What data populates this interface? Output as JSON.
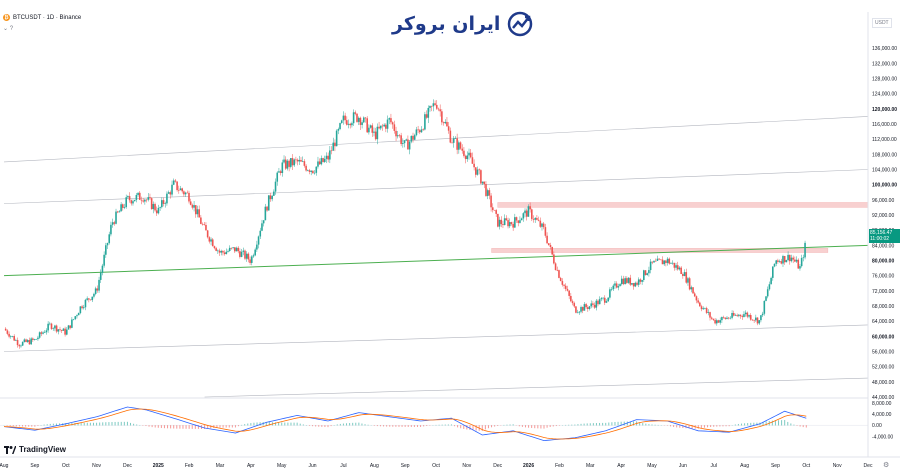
{
  "header": {
    "symbol": "BTCUSDT · 1D · Binance",
    "coin_glyph": "₿",
    "indicator_toggle": "⌄  ?"
  },
  "watermark": {
    "brand_text": "ایران بروکر",
    "icon_name": "chart-trend-icon"
  },
  "footer": {
    "brand": "TradingView",
    "icon_name": "tradingview-logo"
  },
  "axis": {
    "quote_currency": "USDT"
  },
  "price_marker": {
    "price": "85,156.47",
    "countdown": "11:00:02",
    "color": "#089981"
  },
  "settings": {
    "icon_name": "gear-icon",
    "glyph": "⚙"
  },
  "chart_data": [
    {
      "type": "candlestick",
      "title": "BTCUSDT · 1D · Binance",
      "ylim": [
        44000,
        140000
      ],
      "y_ticks": [
        "44,000.00",
        "48,000.00",
        "52,000.00",
        "56,000.00",
        "60,000.00",
        "64,000.00",
        "68,000.00",
        "72,000.00",
        "76,000.00",
        "80,000.00",
        "84,000.00",
        "88,000.00",
        "92,000.00",
        "96,000.00",
        "100,000.00",
        "104,000.00",
        "108,000.00",
        "112,000.00",
        "116,000.00",
        "120,000.00",
        "124,000.00",
        "128,000.00",
        "132,000.00",
        "136,000.00"
      ],
      "y_tick_values": [
        44000,
        48000,
        52000,
        56000,
        60000,
        64000,
        68000,
        72000,
        76000,
        80000,
        84000,
        88000,
        92000,
        96000,
        100000,
        104000,
        108000,
        112000,
        116000,
        120000,
        124000,
        128000,
        132000,
        136000
      ],
      "x_labels": [
        "Aug",
        "Sep",
        "Oct",
        "Nov",
        "Dec",
        "2025",
        "Feb",
        "Mar",
        "Apr",
        "May",
        "Jun",
        "Jul",
        "Aug",
        "Sep",
        "Oct",
        "Nov",
        "Dec",
        "2026",
        "Feb",
        "Mar",
        "Apr",
        "May",
        "Jun",
        "Jul",
        "Aug",
        "Sep",
        "Oct",
        "Nov",
        "Dec"
      ],
      "close_path": [
        [
          0,
          62000
        ],
        [
          0.5,
          58000
        ],
        [
          1,
          59000
        ],
        [
          1.5,
          63000
        ],
        [
          2,
          61000
        ],
        [
          2.5,
          68000
        ],
        [
          3,
          72000
        ],
        [
          3.5,
          90000
        ],
        [
          4,
          96000
        ],
        [
          4.5,
          97000
        ],
        [
          5,
          93000
        ],
        [
          5.5,
          100000
        ],
        [
          6,
          97000
        ],
        [
          6.5,
          88000
        ],
        [
          7,
          82000
        ],
        [
          7.5,
          83000
        ],
        [
          8,
          80000
        ],
        [
          8.5,
          94000
        ],
        [
          9,
          105000
        ],
        [
          9.5,
          106000
        ],
        [
          10,
          104000
        ],
        [
          10.5,
          107000
        ],
        [
          11,
          117000
        ],
        [
          11.5,
          118000
        ],
        [
          12,
          113000
        ],
        [
          12.5,
          117000
        ],
        [
          13,
          110000
        ],
        [
          13.5,
          115000
        ],
        [
          14,
          122000
        ],
        [
          14.5,
          112000
        ],
        [
          15,
          108000
        ],
        [
          15.5,
          101000
        ],
        [
          16,
          90000
        ],
        [
          16.5,
          90000
        ],
        [
          17,
          93000
        ],
        [
          17.5,
          88000
        ],
        [
          17.9,
          78000
        ],
        [
          18,
          76000
        ],
        [
          18.5,
          67000
        ],
        [
          19,
          68000
        ],
        [
          19.5,
          70000
        ],
        [
          20,
          75000
        ],
        [
          20.5,
          74000
        ],
        [
          21,
          79000
        ],
        [
          21.5,
          80000
        ],
        [
          22,
          77000
        ],
        [
          22.5,
          69000
        ],
        [
          23,
          64000
        ],
        [
          23.5,
          65000
        ],
        [
          24,
          66000
        ],
        [
          24.5,
          64000
        ],
        [
          25,
          80000
        ],
        [
          25.5,
          81000
        ],
        [
          25.8,
          78000
        ],
        [
          26,
          85156
        ]
      ],
      "series": [
        {
          "name": "BTCUSDT",
          "up_color": "#26a69a",
          "down_color": "#ef5350"
        }
      ],
      "trendlines": [
        {
          "color": "#4caf50",
          "from": [
            0,
            76000
          ],
          "to": [
            29,
            84000
          ]
        },
        {
          "color": "#b2b5be",
          "from": [
            0,
            106000
          ],
          "to": [
            29,
            118000
          ]
        },
        {
          "color": "#b2b5be",
          "from": [
            0,
            95000
          ],
          "to": [
            29,
            104000
          ]
        },
        {
          "color": "#b2b5be",
          "from": [
            0,
            56000
          ],
          "to": [
            29,
            63000
          ]
        },
        {
          "color": "#b2b5be",
          "from": [
            6.5,
            44000
          ],
          "to": [
            29,
            49000
          ]
        }
      ],
      "zones": [
        {
          "color": "#f7c5c5",
          "x": [
            16,
            29
          ],
          "y": [
            94000,
            95300
          ]
        },
        {
          "color": "#f7c5c5",
          "x": [
            15.8,
            26.7
          ],
          "y": [
            82100,
            83200
          ]
        }
      ],
      "grid": false
    },
    {
      "type": "line",
      "title": "MACD",
      "y_ticks": [
        "8,000.00",
        "4,000.00",
        "0.00",
        "-4,000.00"
      ],
      "y_tick_values": [
        8000,
        4000,
        0,
        -4000
      ],
      "ylim": [
        -6000,
        9000
      ],
      "series": [
        {
          "name": "MACD",
          "color": "#2962ff"
        },
        {
          "name": "Signal",
          "color": "#ff6d00"
        }
      ],
      "macd_path": [
        [
          0,
          -500
        ],
        [
          1,
          -1800
        ],
        [
          2,
          500
        ],
        [
          3,
          3000
        ],
        [
          4,
          6500
        ],
        [
          4.6,
          5500
        ],
        [
          5.5,
          2500
        ],
        [
          6.5,
          -1000
        ],
        [
          7.5,
          -2800
        ],
        [
          8.5,
          1000
        ],
        [
          9.5,
          3500
        ],
        [
          10.5,
          1500
        ],
        [
          11.5,
          4500
        ],
        [
          12.5,
          3000
        ],
        [
          13.5,
          1500
        ],
        [
          14.5,
          2500
        ],
        [
          15.5,
          -3500
        ],
        [
          16.5,
          -2000
        ],
        [
          17.5,
          -5500
        ],
        [
          18.5,
          -4500
        ],
        [
          19.5,
          -2000
        ],
        [
          20.5,
          2000
        ],
        [
          21.5,
          1500
        ],
        [
          22.5,
          -2000
        ],
        [
          23.5,
          -2500
        ],
        [
          24.5,
          500
        ],
        [
          25.3,
          5000
        ],
        [
          26,
          2500
        ]
      ]
    }
  ]
}
